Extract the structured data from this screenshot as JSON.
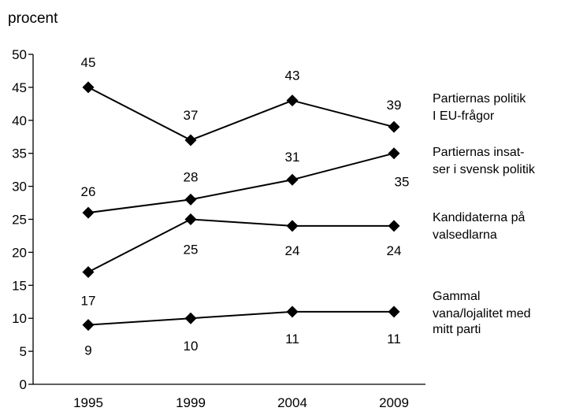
{
  "chart_data": {
    "type": "line",
    "ylabel": "procent",
    "categories": [
      "1995",
      "1999",
      "2004",
      "2009"
    ],
    "ylim": [
      0,
      50
    ],
    "yticks": [
      0,
      5,
      10,
      15,
      20,
      25,
      30,
      35,
      40,
      45,
      50
    ],
    "grid": false,
    "legend": "right",
    "series": [
      {
        "name": "Partiernas politik I EU-frågor",
        "name_lines": [
          "Partiernas politik",
          "I EU-frågor"
        ],
        "values": [
          45,
          37,
          43,
          39
        ]
      },
      {
        "name": "Partiernas insatser i svensk politik",
        "name_lines": [
          "Partiernas insat-",
          "ser i svensk politik"
        ],
        "values": [
          26,
          28,
          31,
          35
        ]
      },
      {
        "name": "Kandidaterna på valsedlarna",
        "name_lines": [
          "Kandidaterna på",
          "valsedlarna"
        ],
        "values": [
          17,
          25,
          24,
          24
        ]
      },
      {
        "name": "Gammal vana/lojalitet med mitt parti",
        "name_lines": [
          "Gammal",
          "vana/lojalitet med",
          "mitt parti"
        ],
        "values": [
          9,
          10,
          11,
          11
        ]
      }
    ]
  }
}
